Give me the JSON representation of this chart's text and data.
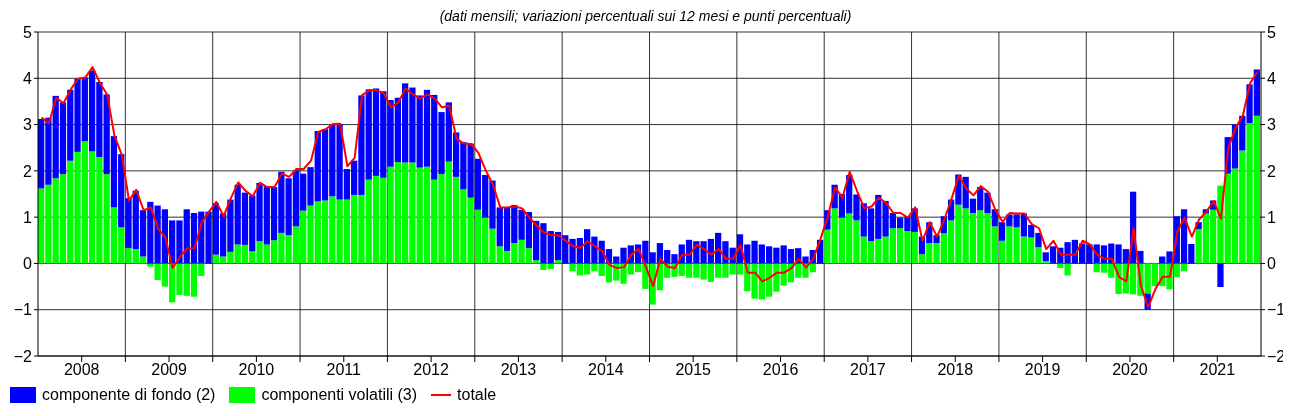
{
  "chart_data": {
    "type": "bar",
    "subtitle": "(dati mensili; variazioni percentuali sui 12 mesi e punti percentuali)",
    "x": [
      "2008-01",
      "2008-02",
      "2008-03",
      "2008-04",
      "2008-05",
      "2008-06",
      "2008-07",
      "2008-08",
      "2008-09",
      "2008-10",
      "2008-11",
      "2008-12",
      "2009-01",
      "2009-02",
      "2009-03",
      "2009-04",
      "2009-05",
      "2009-06",
      "2009-07",
      "2009-08",
      "2009-09",
      "2009-10",
      "2009-11",
      "2009-12",
      "2010-01",
      "2010-02",
      "2010-03",
      "2010-04",
      "2010-05",
      "2010-06",
      "2010-07",
      "2010-08",
      "2010-09",
      "2010-10",
      "2010-11",
      "2010-12",
      "2011-01",
      "2011-02",
      "2011-03",
      "2011-04",
      "2011-05",
      "2011-06",
      "2011-07",
      "2011-08",
      "2011-09",
      "2011-10",
      "2011-11",
      "2011-12",
      "2012-01",
      "2012-02",
      "2012-03",
      "2012-04",
      "2012-05",
      "2012-06",
      "2012-07",
      "2012-08",
      "2012-09",
      "2012-10",
      "2012-11",
      "2012-12",
      "2013-01",
      "2013-02",
      "2013-03",
      "2013-04",
      "2013-05",
      "2013-06",
      "2013-07",
      "2013-08",
      "2013-09",
      "2013-10",
      "2013-11",
      "2013-12",
      "2014-01",
      "2014-02",
      "2014-03",
      "2014-04",
      "2014-05",
      "2014-06",
      "2014-07",
      "2014-08",
      "2014-09",
      "2014-10",
      "2014-11",
      "2014-12",
      "2015-01",
      "2015-02",
      "2015-03",
      "2015-04",
      "2015-05",
      "2015-06",
      "2015-07",
      "2015-08",
      "2015-09",
      "2015-10",
      "2015-11",
      "2015-12",
      "2016-01",
      "2016-02",
      "2016-03",
      "2016-04",
      "2016-05",
      "2016-06",
      "2016-07",
      "2016-08",
      "2016-09",
      "2016-10",
      "2016-11",
      "2016-12",
      "2017-01",
      "2017-02",
      "2017-03",
      "2017-04",
      "2017-05",
      "2017-06",
      "2017-07",
      "2017-08",
      "2017-09",
      "2017-10",
      "2017-11",
      "2017-12",
      "2018-01",
      "2018-02",
      "2018-03",
      "2018-04",
      "2018-05",
      "2018-06",
      "2018-07",
      "2018-08",
      "2018-09",
      "2018-10",
      "2018-11",
      "2018-12",
      "2019-01",
      "2019-02",
      "2019-03",
      "2019-04",
      "2019-05",
      "2019-06",
      "2019-07",
      "2019-08",
      "2019-09",
      "2019-10",
      "2019-11",
      "2019-12",
      "2020-01",
      "2020-02",
      "2020-03",
      "2020-04",
      "2020-05",
      "2020-06",
      "2020-07",
      "2020-08",
      "2020-09",
      "2020-10",
      "2020-11",
      "2020-12",
      "2021-01",
      "2021-02",
      "2021-03",
      "2021-04",
      "2021-05",
      "2021-06",
      "2021-07",
      "2021-08",
      "2021-09",
      "2021-10",
      "2021-11",
      "2021-12"
    ],
    "series": [
      {
        "name": "componenti volatili (3)",
        "color": "#00ff00",
        "values": [
          1.62,
          1.7,
          1.84,
          1.93,
          2.22,
          2.41,
          2.64,
          2.42,
          2.3,
          1.93,
          1.21,
          0.78,
          0.33,
          0.31,
          0.15,
          -0.07,
          -0.36,
          -0.5,
          -0.84,
          -0.68,
          -0.7,
          -0.72,
          -0.27,
          null,
          0.19,
          0.15,
          0.25,
          0.41,
          0.4,
          0.26,
          0.48,
          0.41,
          0.5,
          0.66,
          0.61,
          0.8,
          1.14,
          1.25,
          1.34,
          1.36,
          1.45,
          1.38,
          1.38,
          1.48,
          1.48,
          1.81,
          1.89,
          1.85,
          2.09,
          2.19,
          2.18,
          2.18,
          2.07,
          2.09,
          1.81,
          1.93,
          2.2,
          1.87,
          1.6,
          1.42,
          1.16,
          0.99,
          0.75,
          0.37,
          0.27,
          0.44,
          0.51,
          0.33,
          0.07,
          -0.14,
          -0.12,
          0.07,
          null,
          -0.17,
          -0.26,
          -0.24,
          -0.17,
          -0.27,
          -0.41,
          -0.37,
          -0.44,
          -0.24,
          -0.19,
          -0.55,
          -0.89,
          -0.58,
          -0.31,
          -0.29,
          -0.27,
          -0.31,
          -0.31,
          -0.35,
          -0.4,
          -0.31,
          -0.31,
          -0.24,
          -0.24,
          -0.6,
          -0.76,
          -0.78,
          -0.72,
          -0.61,
          -0.48,
          -0.41,
          -0.31,
          -0.31,
          -0.19,
          0,
          0.73,
          1.19,
          0.99,
          1.08,
          0.93,
          0.58,
          0.48,
          0.53,
          0.58,
          0.76,
          0.76,
          0.7,
          0.68,
          0.2,
          0.44,
          0.44,
          0.65,
          0.93,
          1.27,
          1.19,
          1.09,
          1.15,
          1.09,
          0.8,
          0.49,
          0.8,
          0.78,
          0.58,
          0.56,
          0.35,
          0.05,
          null,
          -0.1,
          -0.26,
          0,
          0,
          null,
          -0.19,
          -0.2,
          -0.31,
          -0.66,
          -0.65,
          -0.67,
          -0.7,
          -0.65,
          -0.49,
          -0.49,
          -0.56,
          -0.29,
          -0.17,
          0,
          0.74,
          1.08,
          1.16,
          1.68,
          1.94,
          2.05,
          2.44,
          3.03,
          3.19
        ]
      },
      {
        "name": "componente di fondo (2)",
        "color": "#0000ff",
        "values": [
          1.5,
          1.45,
          1.78,
          1.55,
          1.53,
          1.58,
          1.38,
          1.75,
          1.62,
          1.72,
          1.54,
          1.58,
          1.08,
          1.26,
          1.0,
          1.33,
          1.25,
          1.17,
          0.93,
          0.93,
          1.17,
          1.09,
          1.12,
          1.12,
          1.11,
          0.93,
          1.13,
          1.29,
          1.13,
          1.21,
          1.26,
          1.26,
          1.15,
          1.32,
          1.23,
          1.21,
          0.8,
          0.83,
          1.52,
          1.54,
          1.55,
          1.63,
          0.66,
          0.74,
          2.15,
          1.95,
          1.89,
          1.87,
          1.44,
          1.39,
          1.71,
          1.62,
          1.56,
          1.66,
          1.83,
          1.34,
          1.28,
          0.96,
          1.02,
          1.17,
          1.1,
          0.92,
          1.04,
          0.84,
          0.94,
          0.82,
          0.65,
          0.78,
          0.85,
          0.87,
          0.7,
          0.61,
          0.61,
          0.53,
          0.55,
          0.74,
          0.58,
          0.49,
          0.31,
          0.15,
          0.34,
          0.39,
          0.41,
          0.49,
          0.24,
          0.44,
          0.29,
          0.2,
          0.41,
          0.51,
          0.48,
          0.48,
          0.53,
          0.66,
          0.48,
          0.34,
          0.63,
          0.41,
          0.49,
          0.41,
          0.37,
          0.34,
          0.39,
          0.31,
          0.33,
          0.15,
          0.29,
          0.51,
          0.42,
          0.51,
          0.51,
          0.83,
          0.56,
          0.72,
          0.71,
          0.95,
          0.77,
          0.33,
          0.23,
          0.32,
          0.51,
          0.38,
          0.45,
          0.17,
          0.37,
          0.45,
          0.65,
          0.68,
          0.31,
          0.5,
          0.44,
          0.37,
          0.4,
          0.26,
          0.28,
          0.5,
          0.27,
          0.31,
          0.19,
          0.37,
          0.34,
          0.46,
          0.51,
          0.43,
          0.41,
          0.41,
          0.39,
          0.43,
          0.41,
          0.31,
          1.55,
          0.27,
          -0.35,
          null,
          0.15,
          0.26,
          1.02,
          1.17,
          0.42,
          0.15,
          0.09,
          0.2,
          -0.51,
          0.79,
          0.95,
          0.75,
          0.84,
          1.0
        ]
      },
      {
        "name": "totale",
        "type": "line",
        "color": "#ff0000",
        "values": [
          3.15,
          3.03,
          3.58,
          3.46,
          3.76,
          3.99,
          4.02,
          4.24,
          3.9,
          3.65,
          2.76,
          2.35,
          1.36,
          1.59,
          1.15,
          1.21,
          0.75,
          0.56,
          -0.1,
          0.14,
          0.33,
          0.33,
          0.89,
          1.12,
          1.33,
          1.02,
          1.41,
          1.75,
          1.57,
          1.45,
          1.74,
          1.65,
          1.65,
          1.94,
          1.87,
          2.04,
          2.04,
          2.22,
          2.84,
          2.9,
          3.01,
          3.02,
          2.1,
          2.28,
          3.63,
          3.74,
          3.74,
          3.68,
          3.37,
          3.48,
          3.78,
          3.65,
          3.56,
          3.65,
          3.56,
          3.37,
          3.41,
          2.69,
          2.59,
          2.58,
          2.39,
          2.01,
          1.7,
          1.21,
          1.21,
          1.23,
          1.19,
          0.99,
          0.82,
          0.67,
          0.61,
          0.61,
          0.49,
          0.37,
          0.34,
          0.48,
          0.37,
          0.27,
          -0.03,
          -0.1,
          -0.08,
          0.19,
          0.31,
          -0.07,
          -0.49,
          0.1,
          -0.07,
          -0.1,
          0.19,
          0.19,
          0.4,
          0.31,
          0.19,
          0.31,
          0.1,
          0.1,
          0.4,
          -0.2,
          -0.2,
          -0.39,
          -0.31,
          -0.2,
          -0.2,
          -0.1,
          0.1,
          -0.09,
          0.1,
          0.53,
          1.02,
          1.64,
          1.42,
          1.98,
          1.57,
          1.19,
          1.23,
          1.42,
          1.31,
          1.09,
          1.09,
          0.99,
          1.21,
          0.49,
          0.89,
          0.58,
          0.95,
          1.4,
          1.9,
          1.62,
          1.47,
          1.67,
          1.55,
          1.16,
          0.9,
          1.09,
          1.08,
          1.08,
          0.85,
          0.76,
          0.31,
          0.49,
          0.19,
          0.19,
          0.19,
          0.49,
          0.41,
          0.19,
          0.1,
          0.1,
          -0.29,
          -0.39,
          0.76,
          -0.48,
          -0.95,
          -0.55,
          -0.29,
          -0.29,
          0.68,
          0.99,
          0.58,
          0.95,
          1.12,
          1.35,
          0.97,
          2.49,
          2.93,
          3.19,
          3.89,
          4.14
        ]
      }
    ],
    "stacked": true,
    "xlim": [
      "2008-01",
      "2022-01"
    ],
    "xticks": [
      {
        "value": "2008-07",
        "label": "2008"
      },
      {
        "value": "2009-01",
        "label": null
      },
      {
        "value": "2009-07",
        "label": "2009"
      },
      {
        "value": "2010-01",
        "label": null
      },
      {
        "value": "2010-07",
        "label": "2010"
      },
      {
        "value": "2011-01",
        "label": null
      },
      {
        "value": "2011-07",
        "label": "2011"
      },
      {
        "value": "2012-01",
        "label": null
      },
      {
        "value": "2012-07",
        "label": "2012"
      },
      {
        "value": "2013-01",
        "label": null
      },
      {
        "value": "2013-07",
        "label": "2013"
      },
      {
        "value": "2014-01",
        "label": null
      },
      {
        "value": "2014-07",
        "label": "2014"
      },
      {
        "value": "2015-01",
        "label": null
      },
      {
        "value": "2015-07",
        "label": "2015"
      },
      {
        "value": "2016-01",
        "label": null
      },
      {
        "value": "2016-07",
        "label": "2016"
      },
      {
        "value": "2017-01",
        "label": null
      },
      {
        "value": "2017-07",
        "label": "2017"
      },
      {
        "value": "2018-01",
        "label": null
      },
      {
        "value": "2018-07",
        "label": "2018"
      },
      {
        "value": "2019-01",
        "label": null
      },
      {
        "value": "2019-07",
        "label": "2019"
      },
      {
        "value": "2020-01",
        "label": null
      },
      {
        "value": "2020-07",
        "label": "2020"
      },
      {
        "value": "2021-01",
        "label": null
      },
      {
        "value": "2021-07",
        "label": "2021"
      }
    ],
    "ylim": [
      -2,
      5
    ],
    "yticks": [
      -2,
      -1,
      0,
      1,
      2,
      3,
      4,
      5
    ],
    "y2lim": [
      -2,
      5
    ],
    "y2ticks": [
      -2,
      -1,
      0,
      1,
      2,
      3,
      4,
      5
    ],
    "grid": true,
    "legend": "bottom left",
    "marker": "none",
    "line_style": "solid"
  }
}
